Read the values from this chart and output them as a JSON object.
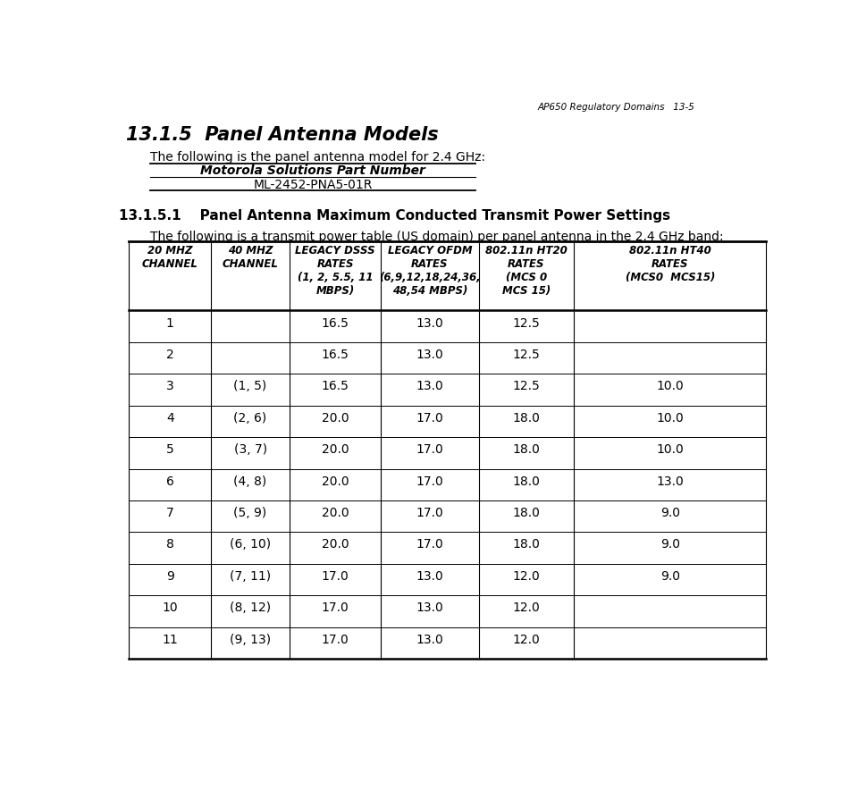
{
  "header_text": "AP650 Regulatory Domains   13-5",
  "section_title": "13.1.5  Panel Antenna Models",
  "section_body": "The following is the panel antenna model for 2.4 GHz:",
  "small_table_header": "Motorola Solutions Part Number",
  "small_table_value": "ML-2452-PNA5-01R",
  "subsection_title": "13.1.5.1    Panel Antenna Maximum Conducted Transmit Power Settings",
  "subsection_body": "The following is a transmit power table (US domain) per panel antenna in the 2.4 GHz band:",
  "col_headers": [
    "20 MHZ\nCHANNEL",
    "40 MHZ\nCHANNEL",
    "LEGACY DSSS\nRATES\n(1, 2, 5.5, 11\nMBPS)",
    "LEGACY OFDM\nRATES\n(6,9,12,18,24,36,\n48,54 MBPS)",
    "802.11n HT20\nRATES\n(MCS 0\nMCS 15)",
    "802.11n HT40\nRATES\n(MCS0  MCS15)"
  ],
  "rows": [
    [
      "1",
      "",
      "16.5",
      "13.0",
      "12.5",
      ""
    ],
    [
      "2",
      "",
      "16.5",
      "13.0",
      "12.5",
      ""
    ],
    [
      "3",
      "(1, 5)",
      "16.5",
      "13.0",
      "12.5",
      "10.0"
    ],
    [
      "4",
      "(2, 6)",
      "20.0",
      "17.0",
      "18.0",
      "10.0"
    ],
    [
      "5",
      "(3, 7)",
      "20.0",
      "17.0",
      "18.0",
      "10.0"
    ],
    [
      "6",
      "(4, 8)",
      "20.0",
      "17.0",
      "18.0",
      "13.0"
    ],
    [
      "7",
      "(5, 9)",
      "20.0",
      "17.0",
      "18.0",
      "9.0"
    ],
    [
      "8",
      "(6, 10)",
      "20.0",
      "17.0",
      "18.0",
      "9.0"
    ],
    [
      "9",
      "(7, 11)",
      "17.0",
      "13.0",
      "12.0",
      "9.0"
    ],
    [
      "10",
      "(8, 12)",
      "17.0",
      "13.0",
      "12.0",
      ""
    ],
    [
      "11",
      "(9, 13)",
      "17.0",
      "13.0",
      "12.0",
      ""
    ]
  ],
  "bg_color": "#ffffff",
  "text_color": "#000000"
}
